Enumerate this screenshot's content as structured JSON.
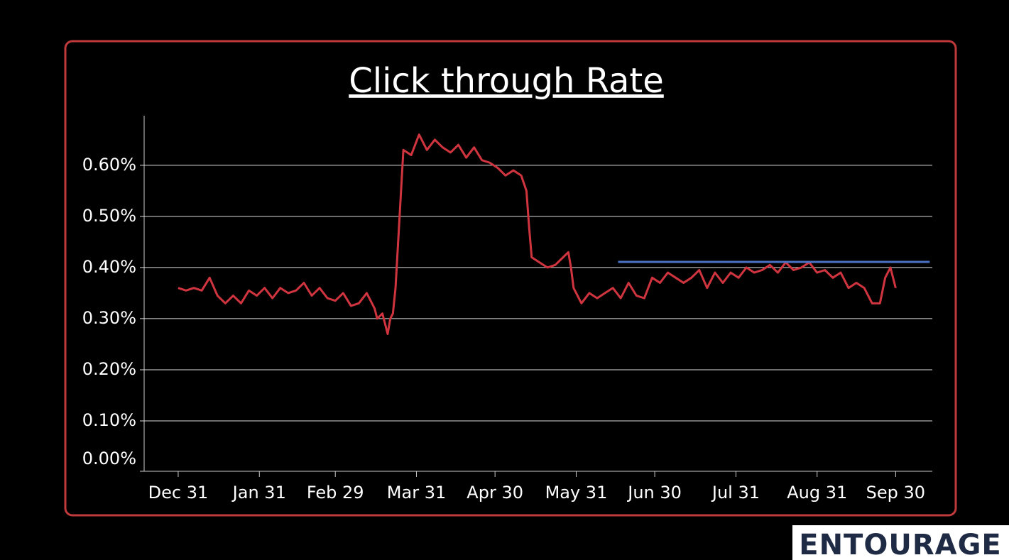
{
  "chart_data": {
    "type": "line",
    "title": "Click through Rate",
    "brand": "ENTOURAGE",
    "x": [
      0,
      3,
      6,
      9,
      12,
      15,
      18,
      21,
      24,
      27,
      30,
      33,
      36,
      39,
      42,
      45,
      48,
      51,
      54,
      57,
      60,
      63,
      66,
      69,
      72,
      75,
      76,
      78,
      80,
      81,
      82,
      83,
      86,
      89,
      92,
      95,
      98,
      101,
      104,
      107,
      110,
      113,
      116,
      119,
      122,
      125,
      128,
      131,
      133,
      134,
      135,
      138,
      141,
      144,
      147,
      149,
      150,
      151,
      154,
      157,
      160,
      163,
      166,
      169,
      172,
      175,
      178,
      181,
      184,
      187,
      190,
      193,
      196,
      199,
      202,
      205,
      208,
      211,
      214,
      217,
      220,
      223,
      226,
      229,
      232,
      235,
      238,
      241,
      244,
      247,
      250,
      253,
      256,
      259,
      262,
      265,
      268,
      270,
      272,
      274
    ],
    "series": [
      {
        "color": "#d0353f",
        "values": [
          0.36,
          0.355,
          0.36,
          0.355,
          0.38,
          0.345,
          0.33,
          0.345,
          0.33,
          0.355,
          0.345,
          0.36,
          0.34,
          0.36,
          0.35,
          0.355,
          0.37,
          0.345,
          0.36,
          0.34,
          0.335,
          0.35,
          0.325,
          0.33,
          0.35,
          0.32,
          0.3,
          0.31,
          0.27,
          0.3,
          0.31,
          0.36,
          0.63,
          0.62,
          0.66,
          0.63,
          0.65,
          0.635,
          0.625,
          0.64,
          0.615,
          0.635,
          0.61,
          0.605,
          0.595,
          0.58,
          0.59,
          0.58,
          0.55,
          0.48,
          0.42,
          0.41,
          0.4,
          0.405,
          0.42,
          0.43,
          0.4,
          0.36,
          0.33,
          0.35,
          0.34,
          0.35,
          0.36,
          0.34,
          0.37,
          0.345,
          0.34,
          0.38,
          0.37,
          0.39,
          0.38,
          0.37,
          0.38,
          0.395,
          0.36,
          0.39,
          0.37,
          0.39,
          0.38,
          0.4,
          0.39,
          0.395,
          0.405,
          0.39,
          0.41,
          0.395,
          0.4,
          0.41,
          0.39,
          0.395,
          0.38,
          0.39,
          0.36,
          0.37,
          0.36,
          0.33,
          0.33,
          0.38,
          0.4,
          0.36
        ]
      },
      {
        "color": "#4a72c4",
        "x": [
          168,
          287
        ],
        "values": [
          0.411,
          0.411
        ]
      }
    ],
    "xlim": [
      -13,
      288
    ],
    "xticks": [
      {
        "value": 0,
        "label": "Dec 31"
      },
      {
        "value": 31,
        "label": "Jan 31"
      },
      {
        "value": 60,
        "label": "Feb 29"
      },
      {
        "value": 91,
        "label": "Mar 31"
      },
      {
        "value": 121,
        "label": "Apr 30"
      },
      {
        "value": 152,
        "label": "May 31"
      },
      {
        "value": 182,
        "label": "Jun 30"
      },
      {
        "value": 213,
        "label": "Jul 31"
      },
      {
        "value": 244,
        "label": "Aug 31"
      },
      {
        "value": 274,
        "label": "Sep 30"
      }
    ],
    "ylim": [
      0,
      0.697
    ],
    "yticks": [
      {
        "value": 0,
        "label": "0.00%"
      },
      {
        "value": 0.1,
        "label": "0.10%"
      },
      {
        "value": 0.2,
        "label": "0.20%"
      },
      {
        "value": 0.3,
        "label": "0.30%"
      },
      {
        "value": 0.4,
        "label": "0.40%"
      },
      {
        "value": 0.5,
        "label": "0.50%"
      },
      {
        "value": 0.6,
        "label": "0.60%"
      }
    ],
    "grid": true
  }
}
